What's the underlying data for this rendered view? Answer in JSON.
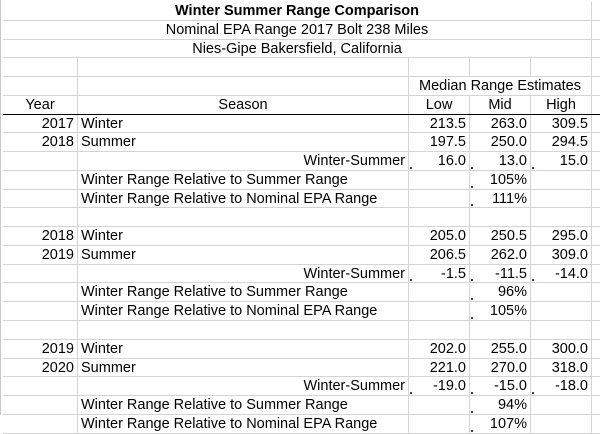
{
  "titles": {
    "main": "Winter Summer Range Comparison",
    "subtitle": "Nominal EPA Range 2017 Bolt 238 Miles",
    "location": "Nies-Gipe Bakersfield, California"
  },
  "header": {
    "group_label": "Median Range Estimates",
    "year": "Year",
    "season": "Season",
    "low": "Low",
    "mid": "Mid",
    "high": "High"
  },
  "blocks": [
    {
      "winter": {
        "year": "2017",
        "season": "Winter",
        "low": "213.5",
        "mid": "263.0",
        "high": "309.5"
      },
      "summer": {
        "year": "2018",
        "season": "Summer",
        "low": "197.5",
        "mid": "250.0",
        "high": "294.5"
      },
      "diff": {
        "label": "Winter-Summer",
        "low": "16.0",
        "mid": "13.0",
        "high": "15.0"
      },
      "rel_summer": {
        "label": "Winter Range Relative to Summer Range",
        "mid": "105%"
      },
      "rel_epa": {
        "label": "Winter Range Relative to Nominal  EPA Range",
        "mid": "111%"
      }
    },
    {
      "winter": {
        "year": "2018",
        "season": "Winter",
        "low": "205.0",
        "mid": "250.5",
        "high": "295.0"
      },
      "summer": {
        "year": "2019",
        "season": "Summer",
        "low": "206.5",
        "mid": "262.0",
        "high": "309.0"
      },
      "diff": {
        "label": "Winter-Summer",
        "low": "-1.5",
        "mid": "-11.5",
        "high": "-14.0"
      },
      "rel_summer": {
        "label": "Winter Range Relative to Summer Range",
        "mid": "96%"
      },
      "rel_epa": {
        "label": "Winter Range Relative to Nominal  EPA Range",
        "mid": "105%"
      }
    },
    {
      "winter": {
        "year": "2019",
        "season": "Winter",
        "low": "202.0",
        "mid": "255.0",
        "high": "300.0"
      },
      "summer": {
        "year": "2020",
        "season": "Summer",
        "low": "221.0",
        "mid": "270.0",
        "high": "318.0"
      },
      "diff": {
        "label": "Winter-Summer",
        "low": "-19.0",
        "mid": "-15.0",
        "high": "-18.0"
      },
      "rel_summer": {
        "label": "Winter Range Relative to Summer Range",
        "mid": "94%"
      },
      "rel_epa": {
        "label": "Winter Range Relative to Nominal  EPA Range",
        "mid": "107%"
      }
    }
  ],
  "colors": {
    "gridline": "#d4d4d4",
    "header_border": "#000000",
    "comment_marker": "#3a3a8a"
  }
}
